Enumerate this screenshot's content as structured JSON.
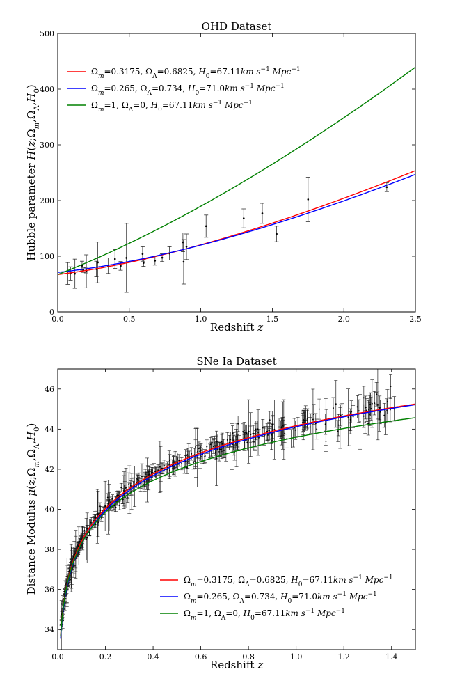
{
  "chart_data": [
    {
      "type": "line",
      "title": "OHD Dataset",
      "xlabel": "Redshift z",
      "ylabel": "Hubble parameter H(z;Ω_m,Ω_Λ,H_0)",
      "xlim": [
        0.0,
        2.5
      ],
      "ylim": [
        0,
        500
      ],
      "xticks": [
        "0.0",
        "0.5",
        "1.0",
        "1.5",
        "2.0",
        "2.5"
      ],
      "yticks": [
        "0",
        "100",
        "200",
        "300",
        "400",
        "500"
      ],
      "legend_position": "upper-left",
      "series": [
        {
          "name": "Ω_m=0.3175, Ω_Λ=0.6825, H_0=67.11 km s^-1 Mpc^-1",
          "label_parts": [
            "Ω",
            "m",
            "=0.3175, Ω",
            "Λ",
            "=0.6825, ",
            "H",
            "0",
            "=67.11",
            "km s",
            "−1",
            " Mpc",
            "−1"
          ],
          "color": "#ff0000",
          "model": "lcdm",
          "Om": 0.3175,
          "OL": 0.6825,
          "H0": 67.11
        },
        {
          "name": "Ω_m=0.265, Ω_Λ=0.734, H_0=71.0 km s^-1 Mpc^-1",
          "label_parts": [
            "Ω",
            "m",
            "=0.265, Ω",
            "Λ",
            "=0.734, ",
            "H",
            "0",
            "=71.0",
            "km s",
            "−1",
            " Mpc",
            "−1"
          ],
          "color": "#0000ff",
          "model": "lcdm",
          "Om": 0.265,
          "OL": 0.734,
          "H0": 71.0
        },
        {
          "name": "Ω_m=1, Ω_Λ=0, H_0=67.11 km s^-1 Mpc^-1",
          "label_parts": [
            "Ω",
            "m",
            "=1, Ω",
            "Λ",
            "=0, ",
            "H",
            "0",
            "=67.11",
            "km s",
            "−1",
            " Mpc",
            "−1"
          ],
          "color": "#008000",
          "model": "eds",
          "Om": 1,
          "OL": 0,
          "H0": 67.11
        }
      ],
      "observations": [
        {
          "z": 0.07,
          "H": 69,
          "err": 19.6
        },
        {
          "z": 0.09,
          "H": 69,
          "err": 12
        },
        {
          "z": 0.12,
          "H": 68.6,
          "err": 26.2
        },
        {
          "z": 0.17,
          "H": 83,
          "err": 8
        },
        {
          "z": 0.179,
          "H": 75,
          "err": 4
        },
        {
          "z": 0.199,
          "H": 75,
          "err": 5
        },
        {
          "z": 0.2,
          "H": 72.9,
          "err": 29.6
        },
        {
          "z": 0.27,
          "H": 77,
          "err": 14
        },
        {
          "z": 0.28,
          "H": 88.8,
          "err": 36.6
        },
        {
          "z": 0.352,
          "H": 83,
          "err": 14
        },
        {
          "z": 0.4,
          "H": 95,
          "err": 17
        },
        {
          "z": 0.44,
          "H": 82.6,
          "err": 7.8
        },
        {
          "z": 0.48,
          "H": 97,
          "err": 62
        },
        {
          "z": 0.593,
          "H": 104,
          "err": 13
        },
        {
          "z": 0.6,
          "H": 87.9,
          "err": 6.1
        },
        {
          "z": 0.68,
          "H": 92,
          "err": 8
        },
        {
          "z": 0.73,
          "H": 97.3,
          "err": 7
        },
        {
          "z": 0.781,
          "H": 105,
          "err": 12
        },
        {
          "z": 0.875,
          "H": 125,
          "err": 17
        },
        {
          "z": 0.88,
          "H": 90,
          "err": 40
        },
        {
          "z": 0.9,
          "H": 117,
          "err": 23
        },
        {
          "z": 1.037,
          "H": 154,
          "err": 20
        },
        {
          "z": 1.3,
          "H": 168,
          "err": 17
        },
        {
          "z": 1.43,
          "H": 177,
          "err": 18
        },
        {
          "z": 1.53,
          "H": 140,
          "err": 14
        },
        {
          "z": 1.75,
          "H": 202,
          "err": 40
        },
        {
          "z": 2.3,
          "H": 224,
          "err": 8
        }
      ]
    },
    {
      "type": "line",
      "title": "SNe Ia Dataset",
      "xlabel": "Redshift z",
      "ylabel": "Distance Modulus μ(z;Ω_m,Ω_Λ,H_0)",
      "xlim": [
        0.0,
        1.5
      ],
      "ylim": [
        33,
        47
      ],
      "xticks": [
        "0.0",
        "0.2",
        "0.4",
        "0.6",
        "0.8",
        "1.0",
        "1.2",
        "1.4"
      ],
      "yticks": [
        "34",
        "36",
        "38",
        "40",
        "42",
        "44",
        "46"
      ],
      "legend_position": "lower-right",
      "series": [
        {
          "name": "Ω_m=0.3175, Ω_Λ=0.6825, H_0=67.11 km s^-1 Mpc^-1",
          "label_parts": [
            "Ω",
            "m",
            "=0.3175, Ω",
            "Λ",
            "=0.6825, ",
            "H",
            "0",
            "=67.11",
            "km s",
            "−1",
            " Mpc",
            "−1"
          ],
          "color": "#ff0000",
          "model": "lcdm",
          "Om": 0.3175,
          "OL": 0.6825,
          "H0": 67.11
        },
        {
          "name": "Ω_m=0.265, Ω_Λ=0.734, H_0=71.0 km s^-1 Mpc^-1",
          "label_parts": [
            "Ω",
            "m",
            "=0.265, Ω",
            "Λ",
            "=0.734, ",
            "H",
            "0",
            "=71.0",
            "km s",
            "−1",
            " Mpc",
            "−1"
          ],
          "color": "#0000ff",
          "model": "lcdm",
          "Om": 0.265,
          "OL": 0.734,
          "H0": 71.0
        },
        {
          "name": "Ω_m=1, Ω_Λ=0, H_0=67.11 km s^-1 Mpc^-1",
          "label_parts": [
            "Ω",
            "m",
            "=1, Ω",
            "Λ",
            "=0, ",
            "H",
            "0",
            "=67.11",
            "km s",
            "−1",
            " Mpc",
            "−1"
          ],
          "color": "#008000",
          "model": "eds",
          "Om": 1,
          "OL": 0,
          "H0": 67.11
        }
      ],
      "observations": {
        "description": "approximately 580 supernova distance moduli with error bars, densest at z < 0.1, following the LCDM curve with scatter of ~0.2–1.5 mag",
        "z_range": [
          0.015,
          1.414
        ],
        "mu_range": [
          33.8,
          45.8
        ],
        "count": 580
      }
    }
  ]
}
